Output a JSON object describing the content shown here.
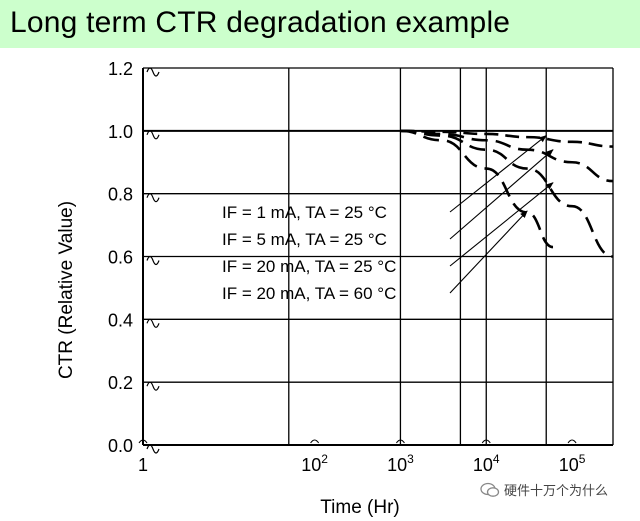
{
  "title": "Long term CTR degradation example",
  "watermark": "硬件十万个为什么",
  "chart_data": {
    "type": "line",
    "xlabel": "Time (Hr)",
    "ylabel": "CTR (Relative Value)",
    "xscale": "log",
    "xlim": [
      1,
      300000
    ],
    "ylim": [
      0,
      1.2
    ],
    "grid": true,
    "xticks": [
      {
        "value": 1,
        "base": "1",
        "exp": ""
      },
      {
        "value": 100,
        "base": "10",
        "exp": "2"
      },
      {
        "value": 1000,
        "base": "10",
        "exp": "3"
      },
      {
        "value": 10000,
        "base": "10",
        "exp": "4"
      },
      {
        "value": 100000,
        "base": "10",
        "exp": "5"
      }
    ],
    "yticks": [
      "0.0",
      "0.2",
      "0.4",
      "0.6",
      "0.8",
      "1.0",
      "1.2"
    ],
    "series": [
      {
        "name": "IF = 1 mA,   TA = 25 °C",
        "x": [
          1000,
          3000,
          10000,
          30000,
          100000,
          300000
        ],
        "y": [
          1.0,
          0.997,
          0.99,
          0.98,
          0.965,
          0.95
        ]
      },
      {
        "name": "IF = 5 mA,   TA = 25 °C",
        "x": [
          1000,
          3000,
          10000,
          30000,
          100000,
          300000
        ],
        "y": [
          1.0,
          0.99,
          0.97,
          0.94,
          0.9,
          0.84
        ]
      },
      {
        "name": "IF = 20 mA, TA = 25 °C",
        "x": [
          1000,
          3000,
          10000,
          30000,
          100000,
          300000
        ],
        "y": [
          1.0,
          0.985,
          0.94,
          0.88,
          0.76,
          0.6
        ]
      },
      {
        "name": "IF = 20 mA, TA = 60 °C",
        "x": [
          1000,
          3000,
          10000,
          30000,
          60000
        ],
        "y": [
          1.0,
          0.97,
          0.88,
          0.74,
          0.63
        ]
      }
    ]
  }
}
